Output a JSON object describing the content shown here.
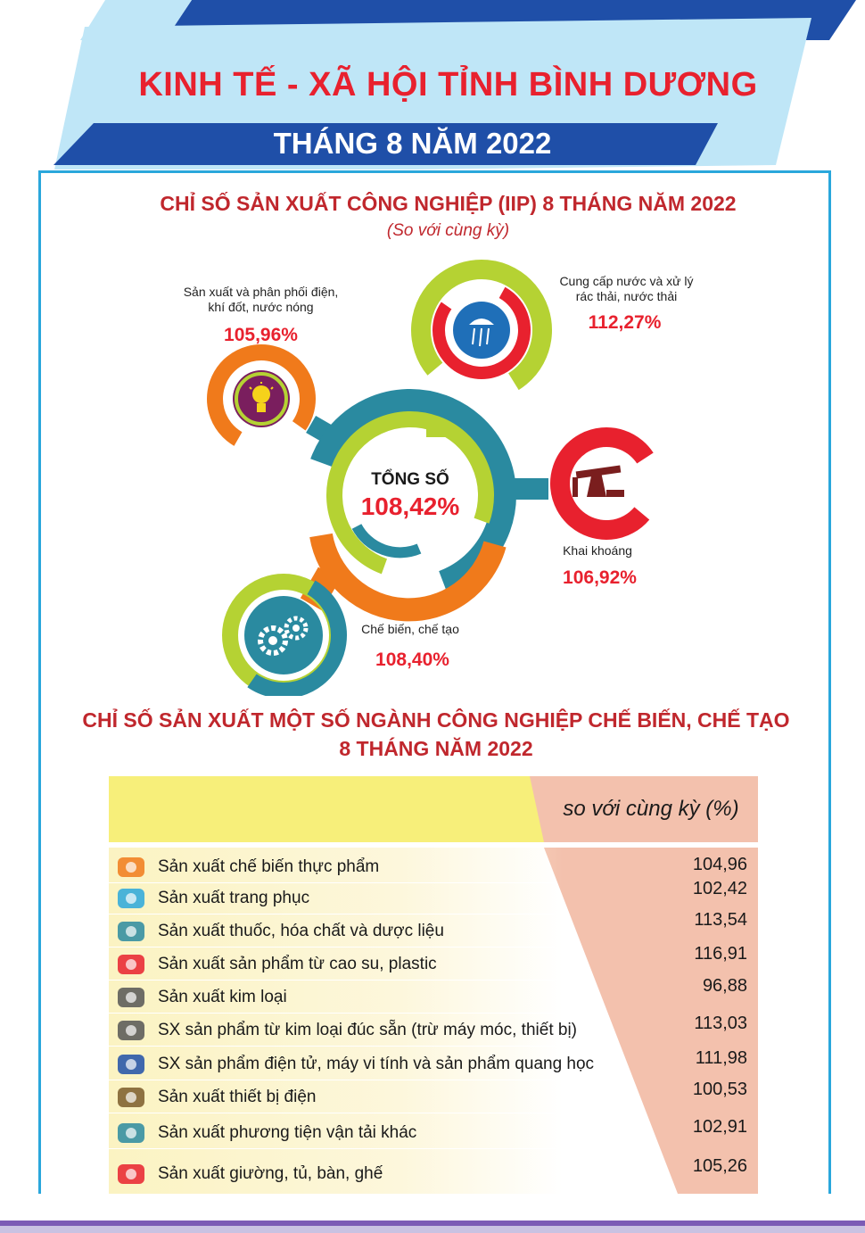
{
  "header": {
    "title": "KINH TẾ - XÃ HỘI TỈNH BÌNH DƯƠNG",
    "subtitle": "THÁNG 8 NĂM 2022"
  },
  "iip": {
    "title": "CHỈ SỐ SẢN XUẤT CÔNG NGHIỆP (IIP) 8  THÁNG  NĂM 2022",
    "subtitle": "(So với cùng kỳ)",
    "total_label": "TỔNG SỐ",
    "total_value": "108,42%",
    "sectors": {
      "electricity": {
        "label_line1": "Sản xuất và phân phối điện,",
        "label_line2": "khí đốt, nước nóng",
        "value": "105,96%"
      },
      "water": {
        "label_line1": "Cung cấp nước và xử lý",
        "label_line2": "rác thải, nước thải",
        "value": "112,27%"
      },
      "mining": {
        "label": "Khai khoáng",
        "value": "106,92%"
      },
      "manufacturing": {
        "label": "Chế biến, chế tạo",
        "value": "108,40%"
      }
    }
  },
  "manufacturing_index": {
    "title_line1": "CHỈ SỐ SẢN XUẤT MỘT SỐ NGÀNH CÔNG NGHIỆP CHẾ BIẾN, CHẾ TẠO",
    "title_line2": "8 THÁNG NĂM 2022",
    "column_header": "so với cùng kỳ (%)",
    "rows": [
      {
        "label": "Sản xuất chế biến thực phẩm",
        "value": "104,96",
        "icon": "bread-icon"
      },
      {
        "label": "Sản xuất trang phục",
        "value": "102,42",
        "icon": "shirt-icon"
      },
      {
        "label": "Sản xuất thuốc, hóa chất và dược liệu",
        "value": "113,54",
        "icon": "pill-icon"
      },
      {
        "label": "Sản xuất sản phẩm từ cao su, plastic",
        "value": "116,91",
        "icon": "bottle-icon"
      },
      {
        "label": "Sản xuất kim loại",
        "value": "96,88",
        "icon": "metal-pipes-icon"
      },
      {
        "label": "SX sản phẩm từ kim loại đúc sẵn (trừ máy móc, thiết bị)",
        "value": "113,03",
        "icon": "metal-cans-icon"
      },
      {
        "label": "SX sản phẩm điện tử, máy vi tính và sản phẩm quang học",
        "value": "111,98",
        "icon": "computer-icon"
      },
      {
        "label": "Sản xuất thiết bị điện",
        "value": "100,53",
        "icon": "electric-device-icon"
      },
      {
        "label": "Sản xuất phương tiện vận tải khác",
        "value": "102,91",
        "icon": "gear-wheel-icon"
      },
      {
        "label": "Sản xuất giường, tủ, bàn, ghế",
        "value": "105,26",
        "icon": "bed-icon"
      }
    ]
  },
  "colors": {
    "accent_red": "#e8212e",
    "title_red": "#c0272d",
    "banner_blue": "#1f4fa8",
    "banner_light": "#bfe6f7",
    "table_yellow": "#f7ef7a",
    "table_salmon": "#f3c1ad",
    "orange": "#f07a1b",
    "lime": "#b5d233",
    "teal": "#2a8aa0"
  }
}
